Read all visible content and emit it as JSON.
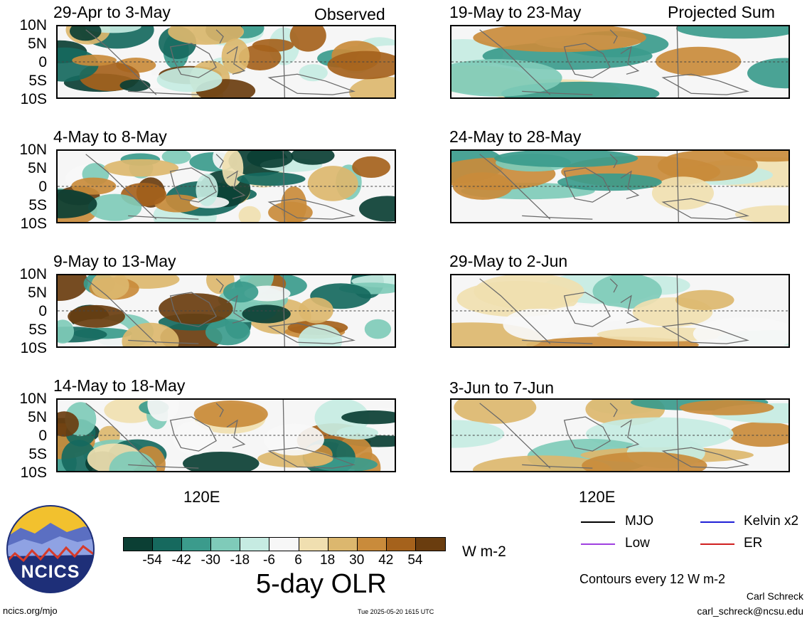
{
  "column_headers": {
    "observed": "Observed",
    "projected": "Projected Sum"
  },
  "panels_left": [
    {
      "title": "29-Apr to 3-May"
    },
    {
      "title": "4-May to 8-May"
    },
    {
      "title": "9-May to 13-May"
    },
    {
      "title": "14-May to 18-May"
    }
  ],
  "panels_right": [
    {
      "title": "19-May to 23-May"
    },
    {
      "title": "24-May to 28-May"
    },
    {
      "title": "29-May to 2-Jun"
    },
    {
      "title": "3-Jun to 7-Jun"
    }
  ],
  "lat_labels": [
    "10N",
    "5N",
    "0",
    "5S",
    "10S"
  ],
  "lon_label": "120E",
  "colorbar": {
    "title": "5-day OLR",
    "units": "W m-2",
    "labels": [
      "-54",
      "-42",
      "-30",
      "-18",
      "-6",
      "6",
      "18",
      "30",
      "42",
      "54"
    ],
    "colors": [
      "#0b3f34",
      "#16695e",
      "#3b9b8c",
      "#7fcbb9",
      "#c6ebe2",
      "#f7f7f7",
      "#f0dfb0",
      "#dcb76e",
      "#c98b3b",
      "#a5621c",
      "#6a3d0f"
    ]
  },
  "legend": {
    "items": [
      {
        "label": "MJO",
        "color": "#000000"
      },
      {
        "label": "Kelvin x2",
        "color": "#1f1fd6"
      },
      {
        "label": "Low",
        "color": "#a040e0"
      },
      {
        "label": "ER",
        "color": "#d02020"
      }
    ],
    "contour_note": "Contours every 12 W m-2"
  },
  "logo": {
    "text": "NCICS"
  },
  "footer": {
    "url": "ncics.org/mjo",
    "timestamp": "Tue 2025-05-20 1615 UTC",
    "author": "Carl Schreck",
    "email": "carl_schreck@ncsu.edu"
  }
}
